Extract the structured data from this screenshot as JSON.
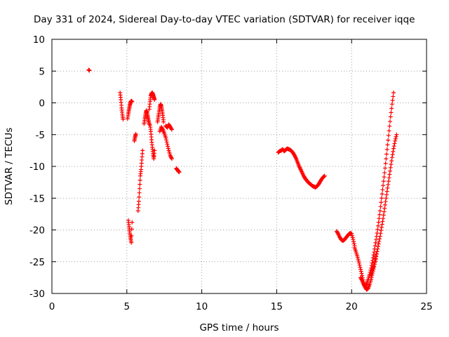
{
  "chart_data": {
    "type": "scatter",
    "title": "Day 331 of 2024, Sidereal Day-to-day VTEC variation (SDTVAR) for receiver iqqe",
    "xlabel": "GPS time / hours",
    "ylabel": "SDTVAR / TECUs",
    "xlim": [
      0,
      25
    ],
    "ylim": [
      -30,
      10
    ],
    "xticks": [
      0,
      5,
      10,
      15,
      20,
      25
    ],
    "yticks": [
      -30,
      -25,
      -20,
      -15,
      -10,
      -5,
      0,
      5,
      10
    ],
    "xtick_labels": [
      "0",
      "5",
      "10",
      "15",
      "20",
      "25"
    ],
    "ytick_labels": [
      "-30",
      "-25",
      "-20",
      "-15",
      "-10",
      "-5",
      "0",
      "5",
      "10"
    ],
    "grid": true,
    "marker": "+",
    "color": "#ff0000",
    "series": [
      {
        "name": "SDTVAR",
        "segments": [
          {
            "x": [
              2.45,
              2.5
            ],
            "y": [
              5.2,
              5.1
            ]
          },
          {
            "x": [
              4.55,
              4.6,
              4.65,
              4.7,
              4.75
            ],
            "y": [
              1.6,
              0.5,
              -0.8,
              -1.8,
              -2.6
            ]
          },
          {
            "x": [
              5.05,
              5.1,
              5.15,
              5.2,
              5.25,
              5.3,
              5.35
            ],
            "y": [
              -2.5,
              -1.7,
              -1.0,
              -0.4,
              0.1,
              0.3,
              0.2
            ]
          },
          {
            "x": [
              5.1,
              5.15,
              5.2,
              5.25,
              5.3,
              5.35
            ],
            "y": [
              -18.5,
              -19.5,
              -20.5,
              -21.3,
              -22.0,
              -18.8
            ]
          },
          {
            "x": [
              5.5,
              5.55,
              5.6
            ],
            "y": [
              -6.0,
              -5.4,
              -4.9
            ]
          },
          {
            "x": [
              5.75,
              5.8,
              5.85,
              5.9,
              5.95,
              6.0,
              6.05
            ],
            "y": [
              -17.0,
              -15.5,
              -13.5,
              -11.5,
              -10.5,
              -9.0,
              -7.5
            ]
          },
          {
            "x": [
              6.15,
              6.2,
              6.25,
              6.3,
              6.35,
              6.4,
              6.45,
              6.5
            ],
            "y": [
              -3.3,
              -2.5,
              -1.8,
              -1.2,
              -1.6,
              -2.2,
              -2.8,
              -3.4
            ]
          },
          {
            "x": [
              6.5,
              6.55,
              6.6,
              6.65,
              6.7,
              6.75,
              6.8,
              6.85
            ],
            "y": [
              -1.0,
              0.2,
              1.1,
              1.5,
              1.6,
              1.3,
              0.9,
              0.5
            ]
          },
          {
            "x": [
              6.55,
              6.6,
              6.65,
              6.7,
              6.75,
              6.8,
              6.85
            ],
            "y": [
              -3.5,
              -4.5,
              -5.8,
              -7.0,
              -8.0,
              -8.8,
              -7.5
            ]
          },
          {
            "x": [
              7.05,
              7.1,
              7.15,
              7.2,
              7.25,
              7.3,
              7.35,
              7.4,
              7.45
            ],
            "y": [
              -3.0,
              -2.2,
              -1.4,
              -0.7,
              -0.2,
              -0.5,
              -1.2,
              -2.0,
              -3.0
            ]
          },
          {
            "x": [
              7.2,
              7.3,
              7.4,
              7.5,
              7.6,
              7.7,
              7.8,
              7.9,
              8.0
            ],
            "y": [
              -4.5,
              -3.8,
              -4.2,
              -4.8,
              -5.5,
              -6.5,
              -7.5,
              -8.3,
              -8.8
            ]
          },
          {
            "x": [
              7.6,
              7.7,
              7.8,
              7.9,
              8.0
            ],
            "y": [
              -3.6,
              -3.9,
              -3.4,
              -3.8,
              -4.2
            ]
          },
          {
            "x": [
              8.3,
              8.35,
              8.4,
              8.45,
              8.5
            ],
            "y": [
              -10.3,
              -10.5,
              -10.6,
              -10.8,
              -10.9
            ]
          },
          {
            "x": [
              15.1,
              15.2,
              15.3,
              15.4,
              15.5,
              15.6,
              15.7,
              15.8,
              15.9,
              16.0,
              16.1,
              16.2,
              16.3,
              16.4,
              16.5,
              16.6,
              16.7,
              16.8,
              16.9,
              17.0,
              17.1,
              17.2,
              17.3,
              17.4,
              17.5,
              17.6,
              17.7,
              17.8,
              17.9,
              18.0,
              18.1,
              18.2
            ],
            "y": [
              -7.8,
              -7.6,
              -7.5,
              -7.3,
              -7.6,
              -7.4,
              -7.2,
              -7.3,
              -7.4,
              -7.6,
              -7.9,
              -8.3,
              -8.8,
              -9.4,
              -10.0,
              -10.5,
              -11.0,
              -11.5,
              -11.9,
              -12.2,
              -12.5,
              -12.7,
              -12.9,
              -13.1,
              -13.2,
              -13.3,
              -13.1,
              -12.8,
              -12.4,
              -12.0,
              -11.7,
              -11.5
            ]
          },
          {
            "x": [
              19.0,
              19.1,
              19.2,
              19.3,
              19.4,
              19.5,
              19.6,
              19.7,
              19.8,
              19.9,
              20.0,
              20.1,
              20.2
            ],
            "y": [
              -20.2,
              -20.6,
              -21.1,
              -21.5,
              -21.7,
              -21.6,
              -21.3,
              -21.0,
              -20.7,
              -20.5,
              -20.6,
              -21.5,
              -22.5
            ]
          },
          {
            "x": [
              20.2,
              20.3,
              20.4,
              20.5,
              20.6,
              20.7,
              20.8,
              20.9,
              21.0,
              21.1,
              21.2,
              21.3,
              21.4,
              21.5,
              21.6,
              21.7
            ],
            "y": [
              -22.8,
              -23.5,
              -24.3,
              -25.2,
              -26.2,
              -27.2,
              -28.2,
              -29.0,
              -29.4,
              -29.2,
              -28.6,
              -27.8,
              -26.8,
              -25.8,
              -24.6,
              -23.4
            ]
          },
          {
            "x": [
              20.6,
              20.7,
              20.8,
              20.9,
              21.0,
              21.1,
              21.2,
              21.3,
              21.4,
              21.5,
              21.6,
              21.7,
              21.8,
              21.9,
              22.0,
              22.1,
              22.2,
              22.3,
              22.4,
              22.5,
              22.6,
              22.7,
              22.8
            ],
            "y": [
              -27.5,
              -28.0,
              -28.6,
              -28.9,
              -28.5,
              -27.8,
              -27.0,
              -26.0,
              -24.8,
              -23.5,
              -22.0,
              -20.5,
              -18.8,
              -17.0,
              -15.0,
              -13.0,
              -11.0,
              -8.8,
              -6.6,
              -4.4,
              -2.2,
              -0.2,
              1.6
            ]
          },
          {
            "x": [
              21.3,
              21.4,
              21.5,
              21.6,
              21.7,
              21.8,
              21.9,
              22.0,
              22.1,
              22.2,
              22.3,
              22.4,
              22.5,
              22.6,
              22.7,
              22.8,
              22.9,
              23.0
            ],
            "y": [
              -27.0,
              -26.2,
              -25.4,
              -24.5,
              -23.4,
              -22.2,
              -21.0,
              -19.6,
              -18.2,
              -16.6,
              -15.0,
              -13.4,
              -11.8,
              -10.2,
              -8.6,
              -7.2,
              -6.0,
              -5.0
            ]
          }
        ]
      }
    ]
  }
}
